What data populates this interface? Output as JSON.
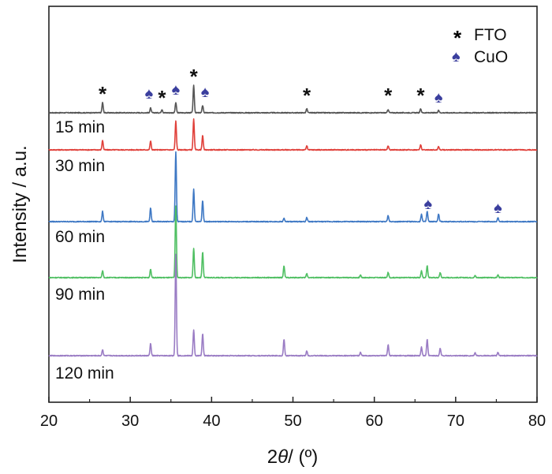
{
  "chart_data": {
    "type": "line",
    "title": "",
    "xlabel": "2θ / (º)",
    "xlabel_parts": {
      "prefix": "2",
      "theta": "θ",
      "suffix": "/ (º)"
    },
    "ylabel": "Intensity / a.u.",
    "xlim": [
      20,
      80
    ],
    "x_ticks": [
      20,
      30,
      40,
      50,
      60,
      70,
      80
    ],
    "y_ticks": [],
    "grid": false,
    "legend": {
      "placement": "top-right",
      "items": [
        {
          "symbol": "*",
          "label": "FTO",
          "color": "#111111"
        },
        {
          "symbol": "♠",
          "label": "CuO",
          "color": "#3b3f9e"
        }
      ]
    },
    "series": [
      {
        "name": "",
        "color": "#555555",
        "baseline": 0,
        "peaks": [
          [
            26.6,
            0.3
          ],
          [
            32.5,
            0.14
          ],
          [
            33.9,
            0.1
          ],
          [
            35.6,
            0.3
          ],
          [
            37.8,
            0.8
          ],
          [
            38.9,
            0.22
          ],
          [
            51.7,
            0.12
          ],
          [
            61.7,
            0.1
          ],
          [
            65.7,
            0.12
          ],
          [
            67.9,
            0.08
          ]
        ]
      },
      {
        "name": "15 min",
        "color": "#e0403a",
        "baseline": 0,
        "peaks": [
          [
            26.6,
            0.28
          ],
          [
            32.5,
            0.26
          ],
          [
            35.6,
            0.85
          ],
          [
            37.8,
            0.9
          ],
          [
            38.9,
            0.42
          ],
          [
            51.7,
            0.12
          ],
          [
            61.7,
            0.12
          ],
          [
            65.7,
            0.15
          ],
          [
            67.9,
            0.1
          ]
        ]
      },
      {
        "name": "30 min",
        "color": "#3e78c4",
        "baseline": 0,
        "peaks": [
          [
            26.6,
            0.3
          ],
          [
            32.5,
            0.4
          ],
          [
            35.6,
            2.05
          ],
          [
            37.8,
            0.95
          ],
          [
            38.9,
            0.62
          ],
          [
            48.9,
            0.1
          ],
          [
            51.7,
            0.12
          ],
          [
            61.7,
            0.18
          ],
          [
            65.8,
            0.22
          ],
          [
            66.5,
            0.3
          ],
          [
            67.9,
            0.22
          ],
          [
            75.2,
            0.12
          ]
        ]
      },
      {
        "name": "60 min",
        "color": "#4fbf62",
        "baseline": 0,
        "peaks": [
          [
            26.6,
            0.2
          ],
          [
            32.5,
            0.25
          ],
          [
            35.6,
            2.1
          ],
          [
            37.8,
            0.85
          ],
          [
            38.9,
            0.75
          ],
          [
            48.9,
            0.35
          ],
          [
            51.7,
            0.12
          ],
          [
            58.3,
            0.08
          ],
          [
            61.7,
            0.15
          ],
          [
            65.8,
            0.2
          ],
          [
            66.5,
            0.35
          ],
          [
            68.1,
            0.15
          ],
          [
            72.4,
            0.06
          ],
          [
            75.2,
            0.08
          ]
        ]
      },
      {
        "name": "90 min",
        "color": "#9a7cc4",
        "baseline": 0,
        "peaks": [
          [
            26.6,
            0.18
          ],
          [
            32.5,
            0.36
          ],
          [
            35.6,
            3.0
          ],
          [
            37.8,
            0.75
          ],
          [
            38.9,
            0.65
          ],
          [
            48.9,
            0.48
          ],
          [
            51.7,
            0.14
          ],
          [
            58.3,
            0.1
          ],
          [
            61.7,
            0.32
          ],
          [
            65.8,
            0.25
          ],
          [
            66.5,
            0.48
          ],
          [
            68.1,
            0.22
          ],
          [
            72.4,
            0.08
          ],
          [
            75.2,
            0.1
          ]
        ]
      }
    ],
    "extra_labels": [
      "120 min"
    ],
    "markers": [
      {
        "symbol": "*",
        "x": 26.6,
        "color": "#111111"
      },
      {
        "symbol": "♠",
        "x": 32.3,
        "color": "#3b3f9e"
      },
      {
        "symbol": "*",
        "x": 33.9,
        "color": "#111111"
      },
      {
        "symbol": "♠",
        "x": 35.6,
        "color": "#3b3f9e"
      },
      {
        "symbol": "*",
        "x": 37.8,
        "color": "#111111"
      },
      {
        "symbol": "♠",
        "x": 39.2,
        "color": "#3b3f9e"
      },
      {
        "symbol": "*",
        "x": 51.7,
        "color": "#111111"
      },
      {
        "symbol": "*",
        "x": 61.7,
        "color": "#111111"
      },
      {
        "symbol": "*",
        "x": 65.7,
        "color": "#111111"
      },
      {
        "symbol": "♠",
        "x": 67.9,
        "color": "#3b3f9e"
      },
      {
        "symbol": "♠",
        "x": 66.6,
        "color": "#3b3f9e"
      },
      {
        "symbol": "♠",
        "x": 75.2,
        "color": "#3b3f9e"
      }
    ]
  }
}
